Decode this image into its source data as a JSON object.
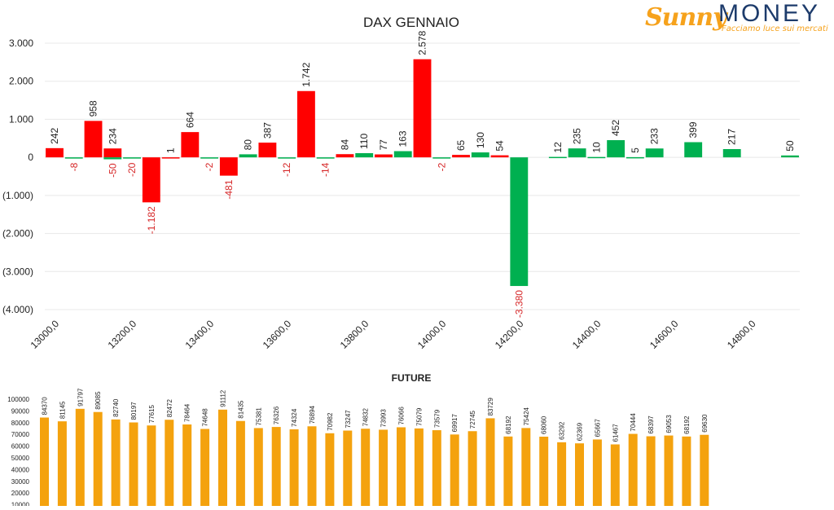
{
  "logo": {
    "brand1": "Sunny",
    "brand2": "MONEY",
    "tagline": "Facciamo luce sui mercati"
  },
  "colors": {
    "negative": "#ff0000",
    "positive": "#00b050",
    "future": "#f4a20e",
    "neg_label": "#d62728",
    "text": "#222222",
    "grid": "#e8e8e8"
  },
  "chart_data": [
    {
      "type": "bar",
      "title": "DAX GENNAIO",
      "xlabel": "",
      "ylabel": "",
      "ylim": [
        -4000,
        3000
      ],
      "yticks": [
        "3.000",
        "2.000",
        "1.000",
        "0",
        "(1.000)",
        "(2.000)",
        "(3.000)",
        "(4.000)"
      ],
      "x_tick_labels": [
        "13000,0",
        "13200,0",
        "13400,0",
        "13600,0",
        "13800,0",
        "14000,0",
        "14200,0",
        "14400,0",
        "14600,0",
        "14800,0"
      ],
      "strikes": [
        13000,
        13050,
        13100,
        13150,
        13200,
        13250,
        13300,
        13350,
        13400,
        13450,
        13500,
        13550,
        13600,
        13650,
        13700,
        13750,
        13800,
        13850,
        13900,
        13950,
        14000,
        14050,
        14100,
        14150,
        14200,
        14250,
        14300,
        14350,
        14400,
        14450,
        14500,
        14550,
        14600,
        14650,
        14700,
        14750,
        14800,
        14850,
        14900
      ],
      "series": [
        {
          "name": "",
          "color": "#ff0000",
          "values": [
            242,
            null,
            958,
            234,
            null,
            -1182,
            1,
            664,
            null,
            -481,
            null,
            387,
            null,
            1742,
            null,
            84,
            null,
            77,
            null,
            2578,
            null,
            65,
            null,
            54,
            null,
            null,
            null,
            null,
            null,
            null,
            null,
            null,
            null,
            null,
            null,
            null,
            null,
            null,
            null
          ],
          "labels": [
            "242",
            "",
            "958",
            "234",
            "",
            "-1.182",
            "1",
            "664",
            "",
            "-481",
            "",
            "387",
            "",
            "1.742",
            "",
            "84",
            "",
            "77",
            "",
            "2.578",
            "",
            "65",
            "",
            "54",
            "",
            "",
            "",
            "",
            "",
            "",
            "",
            "",
            "",
            "",
            "",
            "",
            "",
            "",
            ""
          ]
        },
        {
          "name": "",
          "color": "#00b050",
          "values": [
            null,
            -8,
            null,
            -50,
            -20,
            null,
            null,
            null,
            -2,
            null,
            80,
            null,
            -12,
            null,
            -14,
            null,
            110,
            null,
            163,
            null,
            -2,
            null,
            130,
            null,
            -3380,
            null,
            12,
            235,
            10,
            452,
            5,
            233,
            null,
            399,
            null,
            217,
            null,
            null,
            50
          ],
          "labels": [
            "",
            "-8",
            "",
            "-50",
            "-20",
            "",
            "",
            "",
            "-2",
            "",
            "80",
            "",
            "-12",
            "",
            "-14",
            "",
            "110",
            "",
            "163",
            "",
            "-2",
            "",
            "130",
            "",
            "-3.380",
            "",
            "12",
            "235",
            "10",
            "452",
            "5",
            "233",
            "",
            "399",
            "",
            "217",
            "",
            "",
            "50"
          ]
        }
      ]
    },
    {
      "type": "bar",
      "title": "FUTURE",
      "xlabel": "",
      "ylabel": "",
      "ylim": [
        10000,
        100000
      ],
      "yticks": [
        "100000",
        "90000",
        "80000",
        "70000",
        "60000",
        "50000",
        "40000",
        "30000",
        "20000",
        "10000"
      ],
      "series": [
        {
          "name": "",
          "color": "#f4a20e",
          "values": [
            84370,
            81145,
            91797,
            89085,
            82740,
            80197,
            77615,
            82472,
            78464,
            74648,
            91112,
            81435,
            75381,
            76326,
            74324,
            76894,
            70982,
            73247,
            74832,
            73993,
            76066,
            75079,
            73579,
            69917,
            72745,
            83729,
            68192,
            75424,
            68060,
            63292,
            62369,
            65667,
            61467,
            70444,
            68397,
            69053,
            68192,
            69630
          ],
          "labels": [
            "84370",
            "81145",
            "91797",
            "89085",
            "82740",
            "80197",
            "77615",
            "82472",
            "78464",
            "74648",
            "91112",
            "81435",
            "75381",
            "76326",
            "74324",
            "76894",
            "70982",
            "73247",
            "74832",
            "73993",
            "76066",
            "75079",
            "73579",
            "69917",
            "72745",
            "83729",
            "68192",
            "75424",
            "68060",
            "63292",
            "62369",
            "65667",
            "61467",
            "70444",
            "68397",
            "69053",
            "68192",
            "69630"
          ]
        }
      ]
    }
  ]
}
